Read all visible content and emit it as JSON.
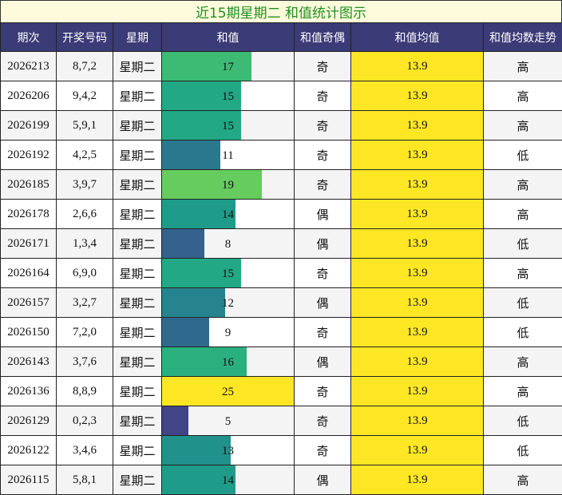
{
  "title": "近15期星期二 和值统计图示",
  "headers": [
    "期次",
    "开奖号码",
    "星期",
    "和值",
    "和值奇偶",
    "和值均值",
    "和值均数走势"
  ],
  "chart_data": {
    "type": "table",
    "title": "近15期星期二 和值统计图示",
    "sum_max": 25,
    "rows": [
      {
        "period": "2026213",
        "numbers": "8,7,2",
        "weekday": "星期二",
        "sum": 17,
        "parity": "奇",
        "average": "13.9",
        "trend": "高",
        "bar_color": "#3dbb74"
      },
      {
        "period": "2026206",
        "numbers": "9,4,2",
        "weekday": "星期二",
        "sum": 15,
        "parity": "奇",
        "average": "13.9",
        "trend": "高",
        "bar_color": "#22a884"
      },
      {
        "period": "2026199",
        "numbers": "5,9,1",
        "weekday": "星期二",
        "sum": 15,
        "parity": "奇",
        "average": "13.9",
        "trend": "高",
        "bar_color": "#22a884"
      },
      {
        "period": "2026192",
        "numbers": "4,2,5",
        "weekday": "星期二",
        "sum": 11,
        "parity": "奇",
        "average": "13.9",
        "trend": "低",
        "bar_color": "#2a788e"
      },
      {
        "period": "2026185",
        "numbers": "3,9,7",
        "weekday": "星期二",
        "sum": 19,
        "parity": "奇",
        "average": "13.9",
        "trend": "高",
        "bar_color": "#66cc5e"
      },
      {
        "period": "2026178",
        "numbers": "2,6,6",
        "weekday": "星期二",
        "sum": 14,
        "parity": "偶",
        "average": "13.9",
        "trend": "高",
        "bar_color": "#1f9c89"
      },
      {
        "period": "2026171",
        "numbers": "1,3,4",
        "weekday": "星期二",
        "sum": 8,
        "parity": "偶",
        "average": "13.9",
        "trend": "低",
        "bar_color": "#34618d"
      },
      {
        "period": "2026164",
        "numbers": "6,9,0",
        "weekday": "星期二",
        "sum": 15,
        "parity": "奇",
        "average": "13.9",
        "trend": "高",
        "bar_color": "#22a884"
      },
      {
        "period": "2026157",
        "numbers": "3,2,7",
        "weekday": "星期二",
        "sum": 12,
        "parity": "偶",
        "average": "13.9",
        "trend": "低",
        "bar_color": "#25848e"
      },
      {
        "period": "2026150",
        "numbers": "7,2,0",
        "weekday": "星期二",
        "sum": 9,
        "parity": "奇",
        "average": "13.9",
        "trend": "低",
        "bar_color": "#30698e"
      },
      {
        "period": "2026143",
        "numbers": "3,7,6",
        "weekday": "星期二",
        "sum": 16,
        "parity": "偶",
        "average": "13.9",
        "trend": "高",
        "bar_color": "#2ab07f"
      },
      {
        "period": "2026136",
        "numbers": "8,8,9",
        "weekday": "星期二",
        "sum": 25,
        "parity": "奇",
        "average": "13.9",
        "trend": "高",
        "bar_color": "#fde725"
      },
      {
        "period": "2026129",
        "numbers": "0,2,3",
        "weekday": "星期二",
        "sum": 5,
        "parity": "奇",
        "average": "13.9",
        "trend": "低",
        "bar_color": "#414487"
      },
      {
        "period": "2026122",
        "numbers": "3,4,6",
        "weekday": "星期二",
        "sum": 13,
        "parity": "奇",
        "average": "13.9",
        "trend": "低",
        "bar_color": "#21918c"
      },
      {
        "period": "2026115",
        "numbers": "5,8,1",
        "weekday": "星期二",
        "sum": 14,
        "parity": "偶",
        "average": "13.9",
        "trend": "高",
        "bar_color": "#1f9c89"
      }
    ]
  }
}
